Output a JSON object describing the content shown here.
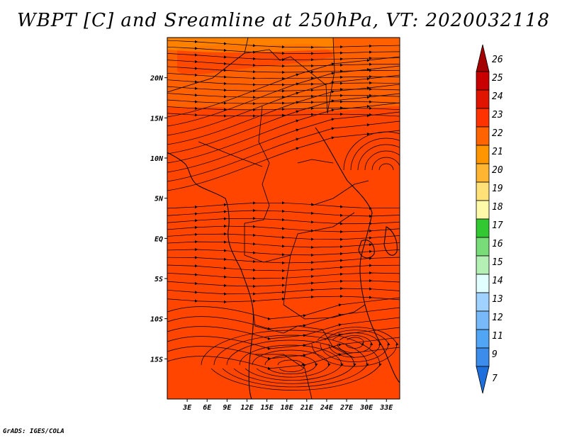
{
  "map": {
    "title": "WBPT [C] and Sreamline at 250hPa, VT: 2020032118",
    "credit": "GrADS: IGES/COLA",
    "lon_ticks": [
      "3E",
      "6E",
      "9E",
      "12E",
      "15E",
      "18E",
      "21E",
      "24E",
      "27E",
      "30E",
      "33E"
    ],
    "lat_ticks": [
      "20N",
      "15N",
      "10N",
      "5N",
      "EQ",
      "5S",
      "10S",
      "15S"
    ],
    "lon_values": [
      3,
      6,
      9,
      12,
      15,
      18,
      21,
      24,
      27,
      30,
      33
    ],
    "lat_values": [
      20,
      15,
      10,
      5,
      0,
      -5,
      -10,
      -15
    ],
    "extent": {
      "lon_min": 0,
      "lon_max": 35,
      "lat_min": -20,
      "lat_max": 25
    },
    "base_fill": "#ff4500"
  },
  "colorbar": {
    "labels": [
      "26",
      "25",
      "24",
      "23",
      "22",
      "21",
      "20",
      "19",
      "18",
      "17",
      "16",
      "15",
      "14",
      "13",
      "12",
      "11",
      "9",
      "7"
    ],
    "colors": [
      "#a50000",
      "#c80000",
      "#e11400",
      "#ff3200",
      "#ff6400",
      "#ff9600",
      "#ffb432",
      "#ffe178",
      "#fffaaa",
      "#32c832",
      "#78dc78",
      "#b4f0b4",
      "#e1ffff",
      "#a0d2ff",
      "#78b9fa",
      "#50a5f5",
      "#3c8ceb",
      "#1e6edc"
    ]
  }
}
